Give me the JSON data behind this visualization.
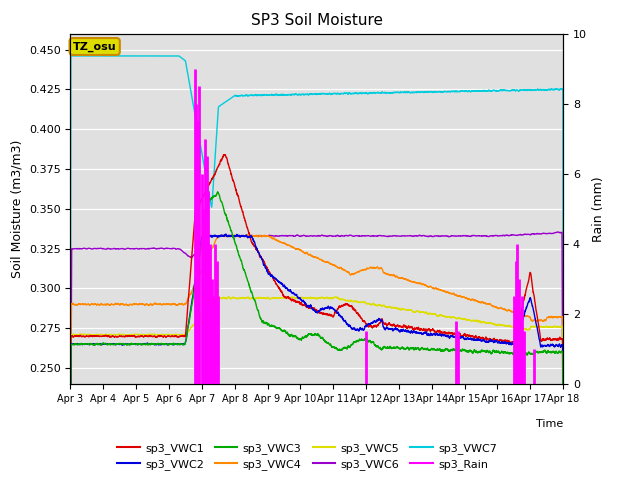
{
  "title": "SP3 Soil Moisture",
  "ylabel_left": "Soil Moisture (m3/m3)",
  "ylabel_right": "Rain (mm)",
  "xlabel": "Time",
  "ylim_left": [
    0.24,
    0.46
  ],
  "ylim_right": [
    0.0,
    10.0
  ],
  "xtick_labels": [
    "Apr 3",
    "Apr 4",
    "Apr 5",
    "Apr 6",
    "Apr 7",
    "Apr 8",
    "Apr 9",
    "Apr 10",
    "Apr 11",
    "Apr 12",
    "Apr 13",
    "Apr 14",
    "Apr 15",
    "Apr 16",
    "Apr 17",
    "Apr 18"
  ],
  "colors": {
    "VWC1": "#dd0000",
    "VWC2": "#0000dd",
    "VWC3": "#00aa00",
    "VWC4": "#ff8800",
    "VWC5": "#dddd00",
    "VWC6": "#9900cc",
    "VWC7": "#00ccdd",
    "Rain": "#ff00ff"
  },
  "background_color": "#e0e0e0",
  "annotation_text": "TZ_osu",
  "annotation_box_facecolor": "#dddd00",
  "annotation_box_edgecolor": "#cc8800",
  "legend_labels": [
    "sp3_VWC1",
    "sp3_VWC2",
    "sp3_VWC3",
    "sp3_VWC4",
    "sp3_VWC5",
    "sp3_VWC6",
    "sp3_VWC7",
    "sp3_Rain"
  ]
}
